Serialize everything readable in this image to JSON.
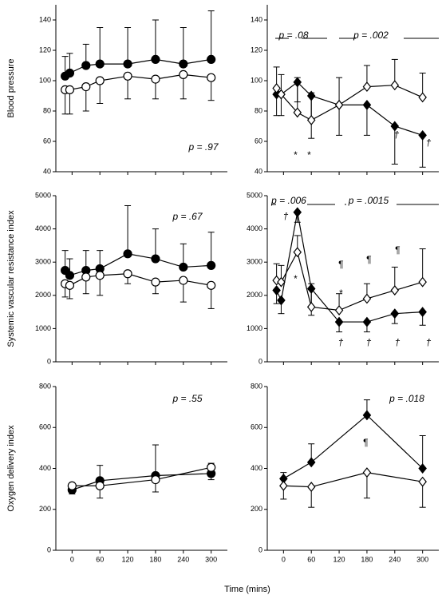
{
  "chart_data": [
    {
      "type": "line",
      "ylabel": "Blood pressure",
      "xlim": [
        -35,
        335
      ],
      "xticks": [
        0,
        60,
        120,
        180,
        240,
        300
      ],
      "ylim": [
        40,
        150
      ],
      "yticks": [
        40,
        60,
        80,
        100,
        120,
        140
      ],
      "x": [
        -15,
        -5,
        30,
        60,
        120,
        180,
        240,
        300
      ],
      "series": [
        {
          "color": "#000",
          "fill": "#000",
          "marker": "circle",
          "error_direction": "up",
          "values": [
            103,
            105,
            110,
            111,
            111,
            114,
            111,
            114
          ],
          "errors": [
            13,
            13,
            14,
            24,
            24,
            26,
            24,
            32
          ]
        },
        {
          "color": "#000",
          "fill": "#fff",
          "marker": "circle",
          "error_direction": "down",
          "values": [
            94,
            94,
            96,
            100,
            103,
            101,
            104,
            102
          ],
          "errors": [
            16,
            16,
            16,
            15,
            15,
            13,
            16,
            15
          ]
        }
      ],
      "annotations": [
        "p = .97"
      ]
    },
    {
      "type": "line",
      "xlim": [
        -35,
        335
      ],
      "xticks": [
        0,
        60,
        120,
        180,
        240,
        300
      ],
      "ylim": [
        40,
        150
      ],
      "yticks": [
        40,
        60,
        80,
        100,
        120,
        140
      ],
      "x": [
        -15,
        -5,
        30,
        60,
        120,
        180,
        240,
        300
      ],
      "series": [
        {
          "color": "#000",
          "fill": "#000",
          "marker": "diamond",
          "error_direction": "down",
          "values": [
            91,
            91,
            99,
            90,
            84,
            84,
            70,
            64
          ],
          "errors": [
            14,
            14,
            13,
            28,
            20,
            20,
            25,
            21
          ]
        },
        {
          "color": "#000",
          "fill": "#fff",
          "marker": "diamond",
          "error_direction": "up",
          "values": [
            95,
            91,
            79,
            74,
            84,
            96,
            97,
            89
          ],
          "errors": [
            14,
            13,
            23,
            18,
            18,
            14,
            17,
            16
          ]
        }
      ],
      "annotations": [
        "p = .08",
        "p = .002",
        "*",
        "*",
        "†",
        "†"
      ]
    },
    {
      "type": "line",
      "ylabel": "Systemic vascular resistance index",
      "xlim": [
        -35,
        335
      ],
      "xticks": [
        0,
        60,
        120,
        180,
        240,
        300
      ],
      "ylim": [
        0,
        5000
      ],
      "yticks": [
        0,
        1000,
        2000,
        3000,
        4000,
        5000
      ],
      "x": [
        -15,
        -5,
        30,
        60,
        120,
        180,
        240,
        300
      ],
      "series": [
        {
          "color": "#000",
          "fill": "#000",
          "marker": "circle",
          "error_direction": "up",
          "values": [
            2750,
            2600,
            2750,
            2800,
            3250,
            3100,
            2850,
            2900
          ],
          "errors": [
            600,
            500,
            600,
            550,
            1450,
            900,
            700,
            1000
          ]
        },
        {
          "color": "#000",
          "fill": "#fff",
          "marker": "circle",
          "error_direction": "down",
          "values": [
            2350,
            2300,
            2550,
            2600,
            2650,
            2400,
            2450,
            2300
          ],
          "errors": [
            400,
            400,
            500,
            600,
            300,
            350,
            650,
            700
          ]
        }
      ],
      "annotations": [
        "p = .67"
      ]
    },
    {
      "type": "line",
      "xlim": [
        -35,
        335
      ],
      "xticks": [
        0,
        60,
        120,
        180,
        240,
        300
      ],
      "ylim": [
        0,
        5000
      ],
      "yticks": [
        0,
        1000,
        2000,
        3000,
        4000,
        5000
      ],
      "x": [
        -15,
        -5,
        30,
        60,
        120,
        180,
        240,
        300
      ],
      "series": [
        {
          "color": "#000",
          "fill": "#000",
          "marker": "diamond",
          "error_direction": "down",
          "values": [
            2150,
            1850,
            4500,
            2200,
            1200,
            1200,
            1450,
            1500
          ],
          "errors": [
            400,
            400,
            300,
            800,
            300,
            300,
            300,
            400
          ]
        },
        {
          "color": "#000",
          "fill": "#fff",
          "marker": "diamond",
          "error_direction": "up",
          "values": [
            2450,
            2400,
            3300,
            1650,
            1550,
            1900,
            2150,
            2400
          ],
          "errors": [
            500,
            500,
            500,
            700,
            500,
            450,
            700,
            1000
          ]
        }
      ],
      "annotations": [
        "p = .006",
        "p = .0015",
        "†",
        "*",
        "¶",
        "¶",
        "¶",
        "*",
        "†",
        "†",
        "†",
        "†"
      ]
    },
    {
      "type": "line",
      "ylabel": "Oxygen delivery index",
      "xlabel": "Time (mins)",
      "xlim": [
        -35,
        335
      ],
      "xticks": [
        0,
        60,
        120,
        180,
        240,
        300
      ],
      "ylim": [
        0,
        800
      ],
      "yticks": [
        0,
        200,
        400,
        600,
        800
      ],
      "x": [
        0,
        60,
        180,
        300
      ],
      "series": [
        {
          "color": "#000",
          "fill": "#000",
          "marker": "circle",
          "error_direction": "up",
          "values": [
            295,
            340,
            365,
            375
          ],
          "errors": [
            30,
            75,
            150,
            50
          ]
        },
        {
          "color": "#000",
          "fill": "#fff",
          "marker": "circle",
          "error_direction": "down",
          "values": [
            315,
            315,
            345,
            405
          ],
          "errors": [
            40,
            60,
            60,
            60
          ]
        }
      ],
      "annotations": [
        "p = .55"
      ]
    },
    {
      "type": "line",
      "xlim": [
        -35,
        335
      ],
      "xticks": [
        0,
        60,
        120,
        180,
        240,
        300
      ],
      "ylim": [
        0,
        800
      ],
      "yticks": [
        0,
        200,
        400,
        600,
        800
      ],
      "x": [
        0,
        60,
        180,
        300
      ],
      "series": [
        {
          "color": "#000",
          "fill": "#000",
          "marker": "diamond",
          "error_direction": "up",
          "values": [
            350,
            430,
            660,
            400
          ],
          "errors": [
            30,
            90,
            75,
            160
          ]
        },
        {
          "color": "#000",
          "fill": "#fff",
          "marker": "diamond",
          "error_direction": "down",
          "values": [
            315,
            310,
            380,
            335
          ],
          "errors": [
            65,
            100,
            125,
            125
          ]
        }
      ],
      "annotations": [
        "p = .018",
        "¶"
      ]
    }
  ]
}
